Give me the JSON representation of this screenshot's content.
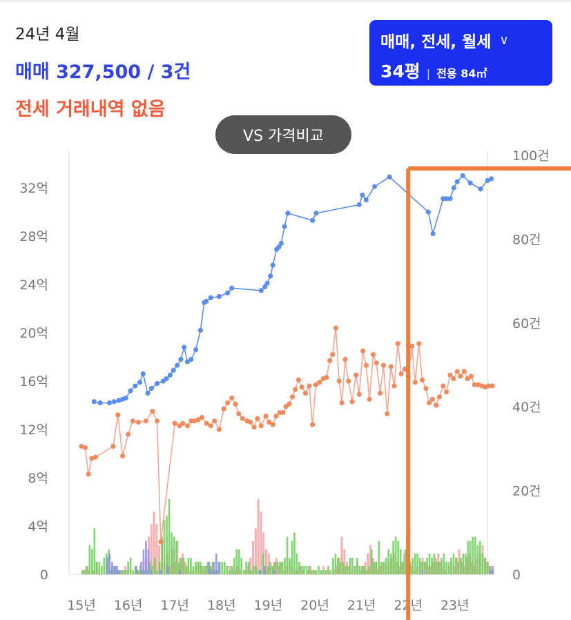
{
  "header": {
    "period": "24년 4월",
    "sale_summary": "매매 327,500 / 3건",
    "jeonse_summary": "전세 거래내역 없음"
  },
  "filter": {
    "types": "매매, 전세, 월세",
    "pyeong": "34평",
    "area": "전용 84㎡"
  },
  "compare_button": "VS 가격비교",
  "colors": {
    "sale_line": "#5b8def",
    "jeonse_line": "#f08a5d",
    "jeonse_segment": "#f7a592",
    "vol_green": "#6ccf5a",
    "vol_pink": "#f5a0a0",
    "vol_blue": "#8e8cf0",
    "marker": "#f07c3a",
    "filter_bg": "#1a2ff0"
  },
  "chart_data": {
    "type": "line",
    "x_ticks": [
      "15년",
      "16년",
      "17년",
      "18년",
      "19년",
      "20년",
      "21년",
      "22년",
      "23년"
    ],
    "x_range": [
      2015.0,
      2023.83
    ],
    "y_left": {
      "ticks": [
        "0",
        "4억",
        "8억",
        "12억",
        "16억",
        "20억",
        "24억",
        "28억",
        "32억"
      ],
      "range": [
        0,
        34
      ]
    },
    "y_right": {
      "ticks": [
        "0",
        "20건",
        "40건",
        "60건",
        "80건",
        "100건"
      ],
      "range": [
        0,
        100
      ]
    },
    "series": [
      {
        "key": "sale",
        "x": [
          2015.27,
          2015.4,
          2015.6,
          2015.7,
          2015.8,
          2015.88,
          2015.95,
          2016.05,
          2016.15,
          2016.25,
          2016.32,
          2016.42,
          2016.5,
          2016.62,
          2016.75,
          2016.82,
          2016.9,
          2016.97,
          2017.05,
          2017.13,
          2017.2,
          2017.27,
          2017.35,
          2017.45,
          2017.55,
          2017.63,
          2017.67,
          2017.77,
          2017.95,
          2018.13,
          2018.22,
          2018.85,
          2018.93,
          2018.98,
          2019.05,
          2019.1,
          2019.18,
          2019.23,
          2019.28,
          2019.35,
          2019.42,
          2019.95,
          2020.03,
          2020.95,
          2021.02,
          2021.1,
          2021.28,
          2021.6,
          2022.43,
          2022.53,
          2022.75,
          2022.82,
          2022.9,
          2022.98,
          2023.05,
          2023.17,
          2023.33,
          2023.55,
          2023.7,
          2023.78
        ],
        "y": [
          14.3,
          14.2,
          14.2,
          14.3,
          14.4,
          14.5,
          14.6,
          15.2,
          15.6,
          15.9,
          16.6,
          15.0,
          15.4,
          15.8,
          16.0,
          16.2,
          16.5,
          16.9,
          17.3,
          17.8,
          18.8,
          17.6,
          17.8,
          18.6,
          20.2,
          22.5,
          22.6,
          22.9,
          23.0,
          23.3,
          23.7,
          23.5,
          23.8,
          24.1,
          24.7,
          25.6,
          26.9,
          27.1,
          27.4,
          28.8,
          29.9,
          29.3,
          29.9,
          30.6,
          31.4,
          31.0,
          32.1,
          32.9,
          30.0,
          28.2,
          31.1,
          31.1,
          31.1,
          32.0,
          32.5,
          33.0,
          32.4,
          31.9,
          32.6,
          32.75
        ]
      },
      {
        "key": "jeonse",
        "x": [
          2015.0,
          2015.08,
          2015.15,
          2015.22,
          2015.3,
          2015.68,
          2015.78,
          2015.88,
          2016.0,
          2016.1,
          2016.22,
          2016.38,
          2016.52,
          2016.62,
          2016.7,
          2017.0,
          2017.1,
          2017.17,
          2017.27,
          2017.35,
          2017.42,
          2017.5,
          2017.58,
          2017.68,
          2017.77,
          2017.85,
          2017.95,
          2018.05,
          2018.13,
          2018.22,
          2018.3,
          2018.37,
          2018.45,
          2018.55,
          2018.62,
          2018.7,
          2018.77,
          2018.85,
          2018.95,
          2019.02,
          2019.1,
          2019.17,
          2019.25,
          2019.32,
          2019.38,
          2019.45,
          2019.52,
          2019.58,
          2019.65,
          2019.72,
          2019.8,
          2019.88,
          2019.95,
          2020.02,
          2020.1,
          2020.18,
          2020.25,
          2020.32,
          2020.38,
          2020.45,
          2020.52,
          2020.58,
          2020.65,
          2020.72,
          2020.8,
          2020.88,
          2020.95,
          2021.03,
          2021.1,
          2021.17,
          2021.25,
          2021.32,
          2021.4,
          2021.47,
          2021.55,
          2021.63,
          2021.7,
          2021.78,
          2021.85,
          2021.93,
          2022.0,
          2022.08,
          2022.15,
          2022.23,
          2022.3,
          2022.38,
          2022.45,
          2022.52,
          2022.6,
          2022.67,
          2022.75,
          2022.82,
          2022.9,
          2022.97,
          2023.05,
          2023.12,
          2023.2,
          2023.27,
          2023.35,
          2023.42,
          2023.5,
          2023.58,
          2023.65,
          2023.72,
          2023.8
        ],
        "y": [
          10.6,
          10.5,
          8.3,
          9.6,
          9.7,
          10.6,
          13.2,
          9.8,
          11.6,
          12.7,
          12.6,
          12.7,
          13.5,
          12.7,
          2.7,
          12.5,
          12.3,
          12.5,
          12.3,
          12.7,
          12.7,
          12.8,
          13.0,
          12.5,
          12.3,
          12.7,
          12.0,
          13.7,
          14.2,
          14.6,
          14.1,
          13.3,
          12.9,
          12.7,
          12.6,
          12.2,
          12.9,
          12.3,
          13.1,
          12.6,
          12.4,
          13.1,
          13.4,
          13.4,
          13.9,
          14.1,
          14.7,
          15.3,
          16.1,
          15.5,
          15.0,
          15.6,
          12.4,
          15.7,
          15.9,
          16.2,
          16.3,
          17.7,
          18.2,
          20.4,
          16.0,
          14.2,
          17.8,
          16.0,
          14.3,
          16.5,
          14.9,
          18.5,
          17.3,
          14.5,
          18.2,
          17.5,
          15.0,
          17.3,
          13.3,
          17.2,
          15.6,
          19.1,
          16.6,
          17.0,
          16.4,
          18.9,
          15.9,
          19.1,
          16.1,
          15.4,
          14.2,
          14.5,
          14.0,
          14.7,
          15.6,
          15.1,
          16.5,
          16.2,
          16.8,
          16.4,
          16.8,
          16.2,
          16.4,
          15.7,
          15.7,
          15.6,
          15.5,
          15.6,
          15.6
        ]
      }
    ],
    "volume_x_range": [
      2015.0,
      2023.83
    ],
    "volume_green": [
      1,
      1,
      2,
      7,
      6,
      11,
      3,
      3,
      2,
      4,
      5,
      6,
      1,
      2,
      2,
      1,
      1,
      1,
      1,
      3,
      4,
      1,
      2,
      1,
      2,
      1,
      1,
      1,
      3,
      2,
      4,
      1,
      3,
      9,
      13,
      14,
      18,
      10,
      9,
      8,
      3,
      4,
      4,
      2,
      4,
      4,
      2,
      3,
      3,
      3,
      2,
      2,
      3,
      2,
      3,
      1,
      1,
      3,
      3,
      3,
      2,
      1,
      2,
      4,
      6,
      6,
      4,
      1,
      3,
      3,
      1,
      2,
      2,
      1,
      1,
      5,
      1,
      2,
      3,
      2,
      3,
      3,
      3,
      3,
      4,
      9,
      4,
      8,
      10,
      5,
      3,
      2,
      2,
      2,
      2,
      1,
      1,
      1,
      2,
      1,
      1,
      1,
      2,
      1,
      4,
      5,
      4,
      3,
      3,
      2,
      2,
      4,
      4,
      2,
      4,
      2,
      2,
      2,
      1,
      2,
      6,
      3,
      3,
      8,
      3,
      3,
      4,
      6,
      5,
      8,
      9,
      8,
      6,
      3,
      6,
      2,
      3,
      4,
      5,
      5,
      4,
      3,
      3,
      4,
      5,
      4,
      5,
      3,
      3,
      4,
      5,
      3,
      3,
      4,
      5,
      4,
      3,
      4,
      5,
      5,
      8,
      8,
      9,
      9,
      7,
      8,
      5,
      4,
      3,
      2,
      1
    ],
    "volume_pink": [
      1,
      2,
      1,
      0,
      1,
      3,
      1,
      0,
      0,
      1,
      0,
      1,
      0,
      1,
      0,
      1,
      2,
      1,
      1,
      0,
      2,
      1,
      1,
      3,
      4,
      9,
      12,
      15,
      12,
      7,
      8,
      3,
      5,
      2,
      6,
      3,
      8,
      4,
      5,
      3,
      2,
      1,
      1,
      2,
      3,
      2,
      1,
      2,
      1,
      2,
      1,
      1,
      2,
      0,
      1,
      0,
      2,
      1,
      1,
      2,
      1,
      0,
      1,
      2,
      4,
      8,
      11,
      18,
      15,
      10,
      6,
      5,
      2,
      3,
      4,
      2,
      3,
      1,
      2,
      3,
      2,
      1,
      1,
      2,
      1,
      0,
      1,
      2,
      1,
      1,
      0,
      1,
      2,
      1,
      1,
      0,
      1,
      2,
      4,
      9,
      6,
      3,
      2,
      1,
      2,
      3,
      1,
      2,
      3,
      5,
      7,
      4,
      3,
      1,
      2,
      3,
      2,
      3,
      4,
      5,
      3,
      2,
      3,
      5,
      10,
      3,
      2,
      1,
      2,
      3,
      4,
      3,
      2,
      2,
      3,
      4,
      5,
      3,
      2,
      1,
      2,
      3,
      2,
      4,
      6,
      3,
      2,
      4,
      5,
      3,
      2,
      4,
      5,
      7,
      4,
      3,
      2,
      1
    ],
    "volume_blue": [
      0,
      0,
      0,
      0,
      0,
      0,
      0,
      0,
      0,
      0,
      4,
      5,
      3,
      2,
      2,
      1,
      0,
      0,
      0,
      0,
      0,
      0,
      2,
      0,
      3,
      6,
      8,
      6,
      1,
      0,
      0,
      0,
      1,
      0,
      0,
      2,
      0,
      0,
      0,
      0,
      1,
      0,
      0,
      0,
      0,
      0,
      0,
      0,
      0,
      0,
      0,
      0,
      3,
      1,
      3,
      5,
      3,
      0,
      0,
      0,
      0,
      0,
      0,
      0,
      0,
      0,
      0,
      0,
      0,
      0,
      0,
      0,
      0,
      1,
      0,
      2,
      0,
      0,
      0,
      1,
      0,
      0,
      0,
      0,
      0,
      0,
      0,
      0,
      0,
      0,
      0,
      0,
      0,
      0,
      0,
      0,
      0,
      0,
      0,
      0,
      0,
      0,
      0,
      0,
      0,
      0,
      0,
      0,
      0,
      0,
      0,
      0,
      0,
      0,
      0,
      0,
      0,
      0,
      0,
      0,
      0,
      0,
      0,
      0,
      0,
      0,
      0,
      0,
      0,
      0,
      0,
      0,
      0,
      0,
      0,
      0,
      0,
      0,
      0,
      0,
      1,
      0,
      0,
      0,
      0,
      0,
      0,
      0,
      0,
      0,
      0,
      0,
      0,
      0,
      0,
      0,
      0,
      0,
      0,
      0,
      0,
      0,
      0,
      0,
      0,
      0,
      0,
      0,
      1,
      2
    ],
    "marker": {
      "x_start": 2022.0,
      "y_level": 33.6
    },
    "grid": "off",
    "legend": "none"
  }
}
